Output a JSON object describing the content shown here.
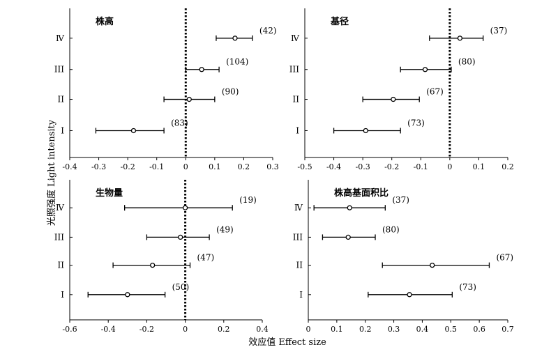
{
  "figure": {
    "y_axis_label": "光照强度 Light intensity",
    "x_axis_label": "效应值 Effect size"
  },
  "chart_data": [
    {
      "type": "forest",
      "title": "株高",
      "categories": [
        "Ⅳ",
        "III",
        "II",
        "I"
      ],
      "xlim": [
        -0.4,
        0.3
      ],
      "xticks": [
        "-0.4",
        "-0.3",
        "-0.2",
        "-0.1",
        "0",
        "0.1",
        "0.2",
        "0.3"
      ],
      "reference_line": 0,
      "points": [
        {
          "category": "Ⅳ",
          "mean": 0.17,
          "lower": 0.105,
          "upper": 0.23,
          "n_label": "(42)"
        },
        {
          "category": "III",
          "mean": 0.055,
          "lower": 0.0,
          "upper": 0.115,
          "n_label": "(104)"
        },
        {
          "category": "II",
          "mean": 0.012,
          "lower": -0.075,
          "upper": 0.1,
          "n_label": "(90)"
        },
        {
          "category": "I",
          "mean": -0.18,
          "lower": -0.31,
          "upper": -0.075,
          "n_label": "(83)"
        }
      ]
    },
    {
      "type": "forest",
      "title": "基径",
      "categories": [
        "Ⅳ",
        "III",
        "II",
        "I"
      ],
      "xlim": [
        -0.5,
        0.2
      ],
      "xticks": [
        "-0.5",
        "-0.4",
        "-0.3",
        "-0.2",
        "-0.1",
        "0",
        "0.1",
        "0.2"
      ],
      "reference_line": 0,
      "points": [
        {
          "category": "Ⅳ",
          "mean": 0.035,
          "lower": -0.07,
          "upper": 0.115,
          "n_label": "(37)"
        },
        {
          "category": "III",
          "mean": -0.085,
          "lower": -0.17,
          "upper": 0.005,
          "n_label": "(80)"
        },
        {
          "category": "II",
          "mean": -0.195,
          "lower": -0.3,
          "upper": -0.105,
          "n_label": "(67)"
        },
        {
          "category": "I",
          "mean": -0.29,
          "lower": -0.4,
          "upper": -0.17,
          "n_label": "(73)"
        }
      ]
    },
    {
      "type": "forest",
      "title": "生物量",
      "categories": [
        "Ⅳ",
        "III",
        "II",
        "I"
      ],
      "xlim": [
        -0.6,
        0.4
      ],
      "xticks": [
        "-0.6",
        "-0.4",
        "-0.2",
        "0",
        "0.2",
        "0.4"
      ],
      "reference_line": 0,
      "points": [
        {
          "category": "Ⅳ",
          "mean": 0.0,
          "lower": -0.315,
          "upper": 0.245,
          "n_label": "(19)"
        },
        {
          "category": "III",
          "mean": -0.025,
          "lower": -0.2,
          "upper": 0.125,
          "n_label": "(49)"
        },
        {
          "category": "II",
          "mean": -0.17,
          "lower": -0.375,
          "upper": 0.025,
          "n_label": "(47)"
        },
        {
          "category": "I",
          "mean": -0.3,
          "lower": -0.505,
          "upper": -0.105,
          "n_label": "(50)"
        }
      ]
    },
    {
      "type": "forest",
      "title": "株高基面积比",
      "categories": [
        "Ⅳ",
        "III",
        "II",
        "I"
      ],
      "xlim": [
        0,
        0.7
      ],
      "xticks": [
        "0",
        "0.1",
        "0.2",
        "0.3",
        "0.4",
        "0.5",
        "0.6",
        "0.7"
      ],
      "reference_line": null,
      "points": [
        {
          "category": "Ⅳ",
          "mean": 0.145,
          "lower": 0.02,
          "upper": 0.27,
          "n_label": "(37)"
        },
        {
          "category": "III",
          "mean": 0.14,
          "lower": 0.05,
          "upper": 0.235,
          "n_label": "(80)"
        },
        {
          "category": "II",
          "mean": 0.435,
          "lower": 0.26,
          "upper": 0.635,
          "n_label": "(67)"
        },
        {
          "category": "I",
          "mean": 0.355,
          "lower": 0.21,
          "upper": 0.505,
          "n_label": "(73)"
        }
      ]
    }
  ]
}
